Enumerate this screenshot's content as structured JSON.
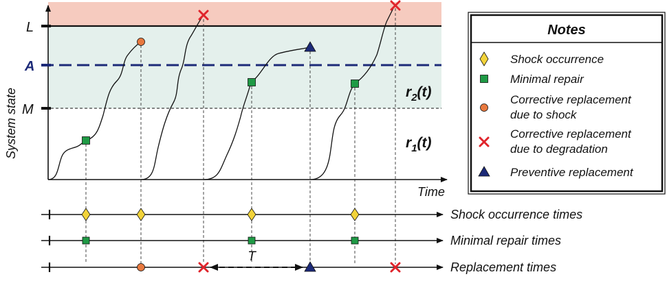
{
  "axes": {
    "y_label": "System state",
    "x_label": "Time"
  },
  "levels": {
    "L": "L",
    "A": "A",
    "M": "M"
  },
  "rates": {
    "r2_base": "r",
    "r2_sub": "2",
    "r2_suffix": "(t)",
    "r1_base": "r",
    "r1_sub": "1",
    "r1_suffix": "(t)"
  },
  "timelines": {
    "shock": "Shock occurrence times",
    "repair": "Minimal repair times",
    "replacement": "Replacement times",
    "interval_label": "T"
  },
  "notes": {
    "title": "Notes",
    "items": [
      {
        "icon": "diamond-icon",
        "label_lines": [
          "Shock occurrence"
        ]
      },
      {
        "icon": "square-icon",
        "label_lines": [
          "Minimal repair"
        ]
      },
      {
        "icon": "circle-icon",
        "label_lines": [
          "Corrective replacement",
          "due to shock"
        ]
      },
      {
        "icon": "cross-icon",
        "label_lines": [
          "Corrective replacement",
          "due to degradation"
        ]
      },
      {
        "icon": "triangle-icon",
        "label_lines": [
          "Preventive replacement"
        ]
      }
    ]
  },
  "colors": {
    "failure_zone": "#f6cbbf",
    "warning_zone": "#e4f0ec",
    "threshold_A": "#1c2a78",
    "shock_marker": "#f2d33a",
    "repair_marker": "#1f9a45",
    "shock_replacement": "#e8793f",
    "degradation_replacement": "#e0242b",
    "preventive_replacement": "#1c2a78"
  }
}
